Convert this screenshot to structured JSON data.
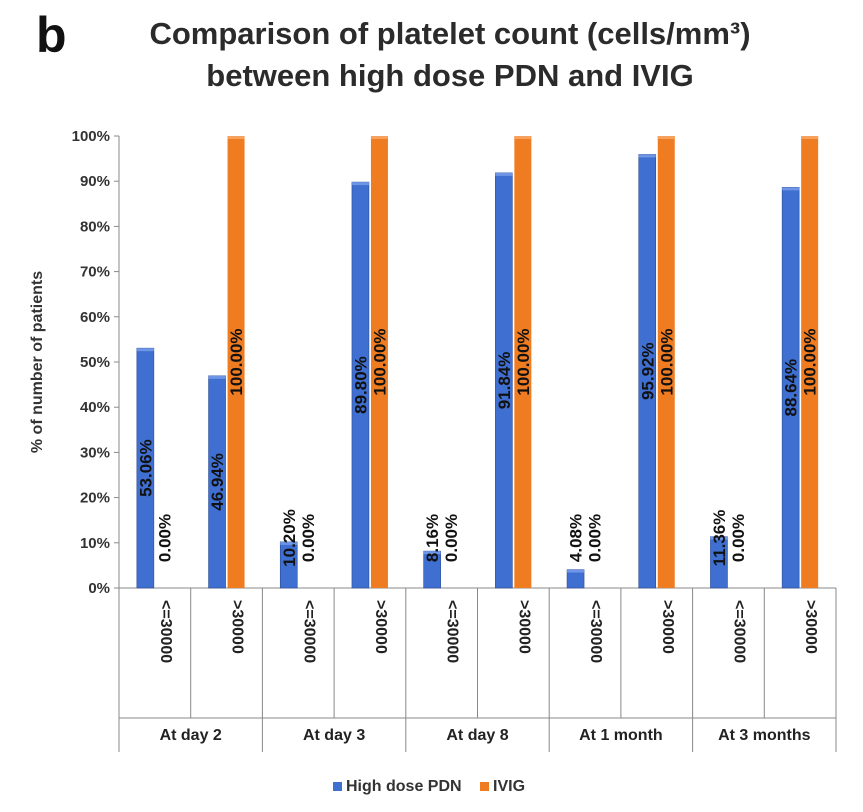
{
  "panel_label": "b",
  "chart_data": {
    "type": "bar",
    "title": "Comparison of platelet count (cells/mm³) between high dose PDN and IVIG",
    "title_lines": [
      "Comparison of platelet count (cells/mm³)",
      "between high dose PDN and IVIG"
    ],
    "ylabel": "% of number of patients",
    "xlabel": "",
    "ylim": [
      0,
      100
    ],
    "yticks": [
      "0%",
      "10%",
      "20%",
      "30%",
      "40%",
      "50%",
      "60%",
      "70%",
      "80%",
      "90%",
      "100%"
    ],
    "groups": [
      "At day 2",
      "At day 3",
      "At day 8",
      "At 1 month",
      "At 3 months"
    ],
    "categories": [
      "<=30000",
      ">30000",
      "<=30000",
      ">30000",
      "<=30000",
      ">30000",
      "<=30000",
      ">30000",
      "<=30000",
      ">30000"
    ],
    "series": [
      {
        "name": "High dose PDN",
        "color": "#3f6fd0",
        "values": [
          53.06,
          46.94,
          10.2,
          89.8,
          8.16,
          91.84,
          4.08,
          95.92,
          11.36,
          88.64
        ],
        "labels": [
          "53.06%",
          "46.94%",
          "10.20%",
          "89.80%",
          "8.16%",
          "91.84%",
          "4.08%",
          "95.92%",
          "11.36%",
          "88.64%"
        ]
      },
      {
        "name": "IVIG",
        "color": "#f07c22",
        "values": [
          0,
          100,
          0,
          100,
          0,
          100,
          0,
          100,
          0,
          100
        ],
        "labels": [
          "0.00%",
          "100.00%",
          "0.00%",
          "100.00%",
          "0.00%",
          "100.00%",
          "0.00%",
          "100.00%",
          "0.00%",
          "100.00%"
        ]
      }
    ],
    "grid": false,
    "legend_position": "bottom"
  }
}
